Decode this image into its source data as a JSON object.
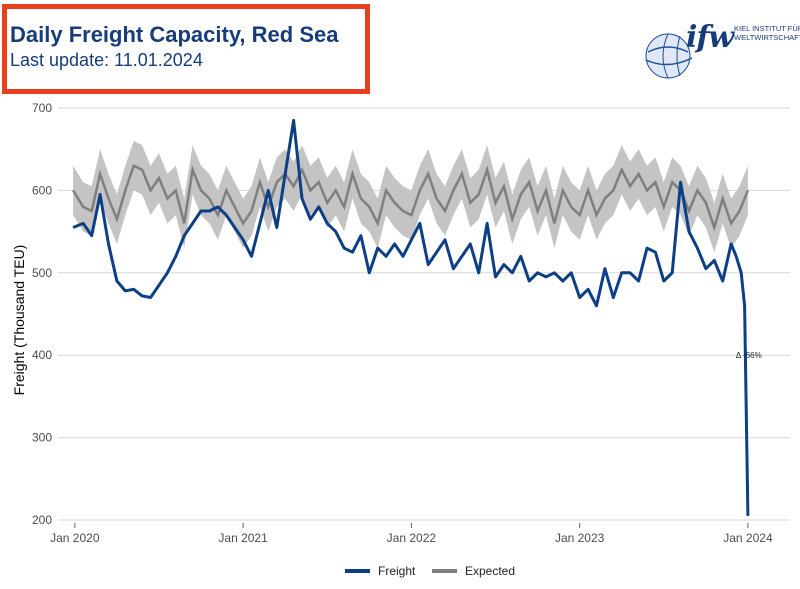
{
  "header": {
    "title": "Daily Freight Capacity, Red Sea",
    "subtitle": "Last update: 11.01.2024"
  },
  "logo": {
    "text": "ifw",
    "line1": "KIEL INSTITUT FÜR",
    "line2": "WELTWIRTSCHAFT"
  },
  "colors": {
    "freight": "#0d3f86",
    "expected": "#7f7f7f",
    "band": "#c4c4c4",
    "accent_border": "#e8401c"
  },
  "chart_data": {
    "type": "line",
    "title": "Daily Freight Capacity, Red Sea",
    "xlabel": "",
    "ylabel": "Freight (Thousand TEU)",
    "ylim": [
      200,
      700
    ],
    "yticks": [
      200,
      300,
      400,
      500,
      600,
      700
    ],
    "xlim": [
      2019.9,
      2024.25
    ],
    "xticks": [
      {
        "x": 2020.0,
        "label": "Jan 2020"
      },
      {
        "x": 2021.0,
        "label": "Jan 2021"
      },
      {
        "x": 2022.0,
        "label": "Jan 2022"
      },
      {
        "x": 2023.0,
        "label": "Jan 2023"
      },
      {
        "x": 2024.0,
        "label": "Jan 2024"
      }
    ],
    "grid": true,
    "legend_position": "bottom",
    "annotation": {
      "text": "Δ -66%",
      "x": 2024.0,
      "y": 400
    },
    "series": [
      {
        "name": "Freight",
        "x": [
          2019.99,
          2020.05,
          2020.1,
          2020.15,
          2020.2,
          2020.25,
          2020.3,
          2020.35,
          2020.4,
          2020.45,
          2020.5,
          2020.55,
          2020.6,
          2020.65,
          2020.7,
          2020.75,
          2020.8,
          2020.85,
          2020.9,
          2020.95,
          2021.0,
          2021.05,
          2021.1,
          2021.15,
          2021.2,
          2021.25,
          2021.3,
          2021.35,
          2021.4,
          2021.45,
          2021.5,
          2021.55,
          2021.6,
          2021.65,
          2021.7,
          2021.75,
          2021.8,
          2021.85,
          2021.9,
          2021.95,
          2022.0,
          2022.05,
          2022.1,
          2022.15,
          2022.2,
          2022.25,
          2022.3,
          2022.35,
          2022.4,
          2022.45,
          2022.5,
          2022.55,
          2022.6,
          2022.65,
          2022.7,
          2022.75,
          2022.8,
          2022.85,
          2022.9,
          2022.95,
          2023.0,
          2023.05,
          2023.1,
          2023.15,
          2023.2,
          2023.25,
          2023.3,
          2023.35,
          2023.4,
          2023.45,
          2023.5,
          2023.55,
          2023.6,
          2023.65,
          2023.7,
          2023.75,
          2023.8,
          2023.85,
          2023.9,
          2023.93,
          2023.96,
          2023.98,
          2024.0
        ],
        "values": [
          555,
          560,
          545,
          595,
          535,
          490,
          478,
          480,
          472,
          470,
          485,
          500,
          520,
          545,
          560,
          575,
          575,
          580,
          570,
          555,
          540,
          520,
          560,
          600,
          555,
          620,
          685,
          590,
          565,
          580,
          560,
          550,
          530,
          525,
          545,
          500,
          530,
          520,
          535,
          520,
          540,
          560,
          510,
          525,
          540,
          505,
          520,
          535,
          500,
          560,
          495,
          510,
          500,
          520,
          490,
          500,
          495,
          500,
          490,
          500,
          470,
          480,
          460,
          505,
          470,
          500,
          500,
          490,
          530,
          525,
          490,
          500,
          610,
          550,
          530,
          505,
          515,
          490,
          535,
          520,
          500,
          460,
          205
        ]
      },
      {
        "name": "Expected",
        "x": [
          2019.99,
          2020.05,
          2020.1,
          2020.15,
          2020.2,
          2020.25,
          2020.3,
          2020.35,
          2020.4,
          2020.45,
          2020.5,
          2020.55,
          2020.6,
          2020.65,
          2020.7,
          2020.75,
          2020.8,
          2020.85,
          2020.9,
          2020.95,
          2021.0,
          2021.05,
          2021.1,
          2021.15,
          2021.2,
          2021.25,
          2021.3,
          2021.35,
          2021.4,
          2021.45,
          2021.5,
          2021.55,
          2021.6,
          2021.65,
          2021.7,
          2021.75,
          2021.8,
          2021.85,
          2021.9,
          2021.95,
          2022.0,
          2022.05,
          2022.1,
          2022.15,
          2022.2,
          2022.25,
          2022.3,
          2022.35,
          2022.4,
          2022.45,
          2022.5,
          2022.55,
          2022.6,
          2022.65,
          2022.7,
          2022.75,
          2022.8,
          2022.85,
          2022.9,
          2022.95,
          2023.0,
          2023.05,
          2023.1,
          2023.15,
          2023.2,
          2023.25,
          2023.3,
          2023.35,
          2023.4,
          2023.45,
          2023.5,
          2023.55,
          2023.6,
          2023.65,
          2023.7,
          2023.75,
          2023.8,
          2023.85,
          2023.9,
          2023.95,
          2024.0
        ],
        "values": [
          600,
          580,
          575,
          620,
          590,
          565,
          600,
          630,
          625,
          600,
          615,
          590,
          600,
          560,
          625,
          600,
          590,
          570,
          600,
          580,
          560,
          575,
          610,
          580,
          610,
          620,
          605,
          625,
          600,
          610,
          585,
          600,
          580,
          620,
          590,
          580,
          560,
          600,
          585,
          575,
          570,
          600,
          620,
          590,
          575,
          600,
          620,
          585,
          595,
          625,
          585,
          605,
          565,
          595,
          610,
          575,
          600,
          560,
          600,
          580,
          570,
          600,
          570,
          590,
          600,
          625,
          605,
          620,
          600,
          610,
          580,
          610,
          600,
          575,
          600,
          585,
          555,
          590,
          560,
          575,
          600
        ]
      },
      {
        "name": "Expected band upper",
        "values": [
          630,
          610,
          605,
          650,
          620,
          595,
          630,
          660,
          655,
          630,
          645,
          620,
          630,
          590,
          655,
          630,
          620,
          600,
          630,
          610,
          590,
          605,
          640,
          610,
          640,
          650,
          635,
          655,
          630,
          640,
          615,
          630,
          610,
          650,
          620,
          610,
          590,
          630,
          615,
          605,
          600,
          630,
          650,
          620,
          605,
          630,
          650,
          615,
          625,
          655,
          615,
          635,
          595,
          625,
          640,
          605,
          630,
          590,
          630,
          610,
          600,
          630,
          600,
          620,
          630,
          655,
          635,
          650,
          630,
          640,
          610,
          640,
          630,
          605,
          630,
          615,
          585,
          620,
          590,
          605,
          630
        ]
      },
      {
        "name": "Expected band lower",
        "values": [
          570,
          550,
          545,
          590,
          560,
          535,
          570,
          600,
          595,
          570,
          585,
          560,
          570,
          530,
          595,
          570,
          560,
          540,
          570,
          550,
          530,
          545,
          580,
          550,
          580,
          590,
          575,
          595,
          570,
          580,
          555,
          570,
          550,
          590,
          560,
          550,
          530,
          570,
          555,
          545,
          540,
          570,
          590,
          560,
          545,
          570,
          590,
          555,
          565,
          595,
          555,
          575,
          535,
          565,
          580,
          545,
          570,
          530,
          570,
          550,
          540,
          570,
          540,
          560,
          570,
          595,
          575,
          590,
          570,
          580,
          550,
          580,
          570,
          545,
          570,
          555,
          525,
          560,
          530,
          545,
          570
        ]
      }
    ]
  }
}
